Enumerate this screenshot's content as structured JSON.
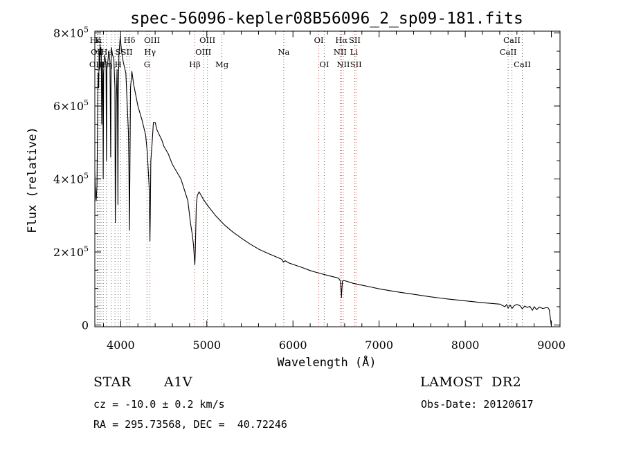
{
  "chart_data": {
    "type": "line",
    "title": "spec-56096-kepler08B56096_2_sp09-181.fits",
    "xlabel": "Wavelength (Å)",
    "ylabel": "Flux (relative)",
    "xlim": [
      3700,
      9100
    ],
    "ylim": [
      -5000,
      805000
    ],
    "grid": false,
    "x_ticks": [
      {
        "value": 4000,
        "label": "4000"
      },
      {
        "value": 5000,
        "label": "5000"
      },
      {
        "value": 6000,
        "label": "6000"
      },
      {
        "value": 7000,
        "label": "7000"
      },
      {
        "value": 8000,
        "label": "8000"
      },
      {
        "value": 9000,
        "label": "9000"
      }
    ],
    "y_ticks": [
      {
        "value": 0,
        "mantissa": "0",
        "exponent": ""
      },
      {
        "value": 200000,
        "mantissa": "2×10",
        "exponent": "5"
      },
      {
        "value": 400000,
        "mantissa": "4×10",
        "exponent": "5"
      },
      {
        "value": 600000,
        "mantissa": "6×10",
        "exponent": "5"
      },
      {
        "value": 800000,
        "mantissa": "8×10",
        "exponent": "5"
      }
    ],
    "series": [
      {
        "color": "#000000",
        "x": [
          3700,
          3705,
          3715,
          3720,
          3725,
          3730,
          3738,
          3745,
          3750,
          3757,
          3760,
          3767,
          3771,
          3775,
          3780,
          3790,
          3793,
          3797,
          3802,
          3808,
          3815,
          3830,
          3835,
          3840,
          3850,
          3862,
          3876,
          3884,
          3889,
          3894,
          3905,
          3920,
          3933,
          3938,
          3950,
          3958,
          3963,
          3968,
          3972,
          3980,
          3995,
          4010,
          4030,
          4050,
          4060,
          4090,
          4095,
          4102,
          4109,
          4115,
          4130,
          4150,
          4200,
          4250,
          4290,
          4310,
          4330,
          4336,
          4340,
          4344,
          4350,
          4365,
          4380,
          4400,
          4420,
          4450,
          4480,
          4500,
          4550,
          4600,
          4650,
          4700,
          4740,
          4780,
          4810,
          4830,
          4845,
          4856,
          4861,
          4866,
          4878,
          4890,
          4910,
          4950,
          5000,
          5100,
          5200,
          5300,
          5400,
          5500,
          5600,
          5700,
          5800,
          5870,
          5890,
          5910,
          5950,
          6000,
          6100,
          6200,
          6300,
          6400,
          6500,
          6530,
          6552,
          6559,
          6563,
          6567,
          6574,
          6590,
          6620,
          6700,
          6800,
          6900,
          7000,
          7200,
          7400,
          7600,
          7800,
          8000,
          8200,
          8400,
          8460,
          8480,
          8498,
          8520,
          8542,
          8570,
          8600,
          8640,
          8662,
          8690,
          8720,
          8750,
          8780,
          8800,
          8830,
          8860,
          8900,
          8950,
          8960,
          8975,
          8990,
          8997
        ],
        "y": [
          420000,
          380000,
          340000,
          360000,
          380000,
          500000,
          690000,
          650000,
          750000,
          700000,
          770000,
          740000,
          760000,
          740000,
          550000,
          720000,
          690000,
          400000,
          690000,
          720000,
          740000,
          710000,
          450000,
          700000,
          720000,
          750000,
          720000,
          460000,
          720000,
          760000,
          740000,
          730000,
          650000,
          280000,
          620000,
          700000,
          600000,
          330000,
          610000,
          740000,
          790000,
          750000,
          720000,
          700000,
          690000,
          530000,
          440000,
          260000,
          480000,
          650000,
          695000,
          660000,
          600000,
          560000,
          520000,
          470000,
          380000,
          300000,
          230000,
          300000,
          450000,
          500000,
          555000,
          555000,
          535000,
          520000,
          505000,
          490000,
          470000,
          440000,
          420000,
          400000,
          370000,
          340000,
          280000,
          250000,
          220000,
          180000,
          165000,
          200000,
          330000,
          355000,
          365000,
          348000,
          330000,
          300000,
          275000,
          255000,
          238000,
          222000,
          208000,
          197000,
          187000,
          180000,
          172000,
          176000,
          170000,
          166000,
          158000,
          149000,
          142000,
          136000,
          130000,
          128000,
          120000,
          95000,
          75000,
          95000,
          120000,
          122000,
          120000,
          114000,
          109000,
          104000,
          99000,
          91000,
          84000,
          77000,
          71000,
          66000,
          61000,
          57000,
          50000,
          56000,
          46000,
          55000,
          45000,
          53000,
          56000,
          52000,
          44000,
          52000,
          48000,
          51000,
          40000,
          50000,
          42000,
          49000,
          45000,
          48000,
          47000,
          42000,
          15000,
          0
        ]
      }
    ],
    "spectral_lines": [
      {
        "label": "Hα",
        "x": 3712,
        "row": 0
      },
      {
        "label": "K",
        "x": 3738,
        "row": 0
      },
      {
        "label": "Hδ",
        "x": 4102,
        "row": 0
      },
      {
        "label": "OIII",
        "x": 4364,
        "row": 0
      },
      {
        "label": "OIII",
        "x": 5007,
        "row": 0
      },
      {
        "label": "OI",
        "x": 6300,
        "row": 0
      },
      {
        "label": "Hα",
        "x": 6563,
        "row": 0
      },
      {
        "label": "SII",
        "x": 6717,
        "row": 0
      },
      {
        "label": "CaII",
        "x": 8542,
        "row": 0
      },
      {
        "label": "OII",
        "x": 3727,
        "row": 1
      },
      {
        "label": "He",
        "x": 3835,
        "row": 1
      },
      {
        "label": "S",
        "x": 3970,
        "row": 1
      },
      {
        "label": "SII",
        "x": 4071,
        "row": 1
      },
      {
        "label": "Hγ",
        "x": 4340,
        "row": 1
      },
      {
        "label": "OIII",
        "x": 4959,
        "row": 1
      },
      {
        "label": "Na",
        "x": 5893,
        "row": 1
      },
      {
        "label": "NII",
        "x": 6548,
        "row": 1
      },
      {
        "label": "Li",
        "x": 6708,
        "row": 1
      },
      {
        "label": "CaII",
        "x": 8498,
        "row": 1
      },
      {
        "label": "OIII",
        "x": 3727,
        "row": 2
      },
      {
        "label": "Hη",
        "x": 3835,
        "row": 2
      },
      {
        "label": "H",
        "x": 3970,
        "row": 2
      },
      {
        "label": "G",
        "x": 4305,
        "row": 2
      },
      {
        "label": "Hβ",
        "x": 4861,
        "row": 2
      },
      {
        "label": "Mg",
        "x": 5175,
        "row": 2
      },
      {
        "label": "OI",
        "x": 6363,
        "row": 2
      },
      {
        "label": "NII",
        "x": 6584,
        "row": 2
      },
      {
        "label": "SII",
        "x": 6731,
        "row": 2
      },
      {
        "label": "CaII",
        "x": 8662,
        "row": 2
      }
    ],
    "emission_lines_x": [
      3727,
      4102,
      4340,
      4861,
      4959,
      5007,
      6300,
      6548,
      6563,
      6584,
      6717,
      6731
    ],
    "absorption_lines_x": [
      3734,
      3750,
      3771,
      3798,
      3835,
      3889,
      3934,
      3970,
      4000,
      4071,
      4305,
      5175,
      5893,
      6363,
      8498,
      8542,
      8662
    ]
  },
  "info": {
    "object_type": "STAR",
    "subclass": "A1V",
    "survey": "LAMOST  DR2",
    "redshift": "cz = -10.0 ± 0.2 km/s",
    "obs_date": "Obs-Date: 20120617",
    "coords": "RA = 295.73568, DEC =  40.72246"
  },
  "colors": {
    "emission": "#d04a4a",
    "absorption": "#666666",
    "spectrum": "#000000"
  }
}
